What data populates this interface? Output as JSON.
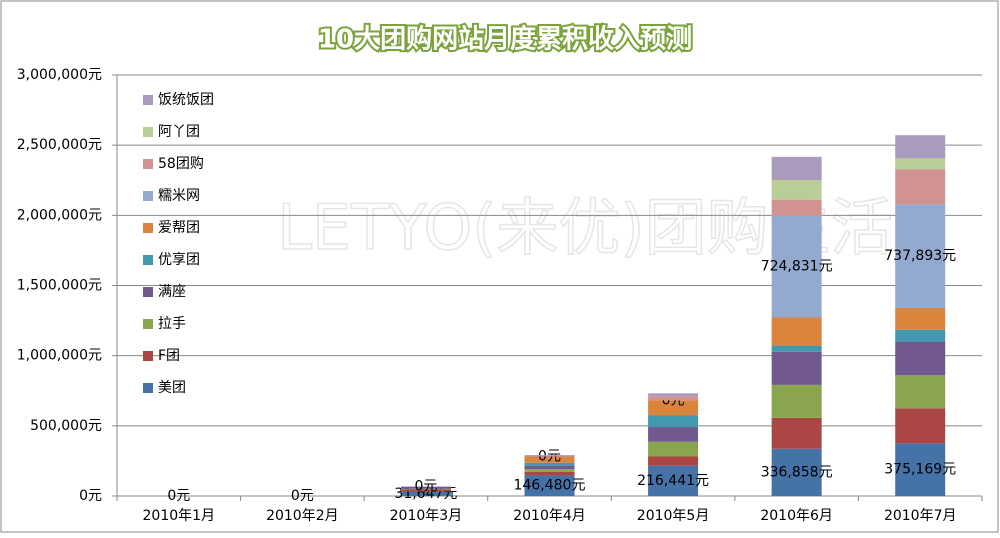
{
  "chart_data": {
    "type": "stacked-bar",
    "title": "10大团购网站月度累积收入预测",
    "watermark": "LETYO(来优)团购生活",
    "categories": [
      "2010年1月",
      "2010年2月",
      "2010年3月",
      "2010年4月",
      "2010年5月",
      "2010年6月",
      "2010年7月"
    ],
    "series": [
      {
        "name": "美团",
        "color": "#4572a7",
        "values": [
          0,
          0,
          31647,
          146480,
          216441,
          336858,
          375169
        ],
        "value_labels": [
          "0元",
          "0元",
          "31,647元",
          "146,480元",
          "216,441元",
          "336,858元",
          "375,169元"
        ]
      },
      {
        "name": "F团",
        "color": "#aa4643",
        "values": [
          0,
          0,
          15000,
          25000,
          65000,
          220000,
          250000
        ]
      },
      {
        "name": "拉手",
        "color": "#89a54e",
        "values": [
          0,
          0,
          5000,
          20000,
          105000,
          235000,
          235000
        ]
      },
      {
        "name": "满座",
        "color": "#71588f",
        "values": [
          0,
          0,
          15000,
          25000,
          105000,
          235000,
          240000
        ]
      },
      {
        "name": "优享团",
        "color": "#4198af",
        "values": [
          0,
          0,
          0,
          20000,
          85000,
          45000,
          85000
        ]
      },
      {
        "name": "爱帮团",
        "color": "#db843d",
        "values": [
          0,
          0,
          0,
          45000,
          105000,
          200000,
          155000
        ]
      },
      {
        "name": "糯米网",
        "color": "#93a9cf",
        "values": [
          0,
          0,
          0,
          0,
          0,
          724831,
          737893
        ],
        "value_labels": [
          null,
          null,
          "0元",
          "0元",
          "0元",
          "724,831元",
          "737,893元"
        ]
      },
      {
        "name": "58团购",
        "color": "#d19392",
        "values": [
          0,
          0,
          0,
          0,
          30000,
          115000,
          250000
        ]
      },
      {
        "name": "阿丫团",
        "color": "#b9cd96",
        "values": [
          0,
          0,
          0,
          0,
          0,
          140000,
          78000
        ]
      },
      {
        "name": "饭统饭团",
        "color": "#a99bbd",
        "values": [
          0,
          0,
          0,
          10000,
          20000,
          165000,
          165000
        ]
      }
    ],
    "ylim": [
      0,
      3000000
    ],
    "yticks": [
      {
        "value": 0,
        "label": "0元"
      },
      {
        "value": 500000,
        "label": "500,000元"
      },
      {
        "value": 1000000,
        "label": "1,000,000元"
      },
      {
        "value": 1500000,
        "label": "1,500,000元"
      },
      {
        "value": 2000000,
        "label": "2,000,000元"
      },
      {
        "value": 2500000,
        "label": "2,500,000元"
      },
      {
        "value": 3000000,
        "label": "3,000,000元"
      }
    ],
    "grid": true
  }
}
